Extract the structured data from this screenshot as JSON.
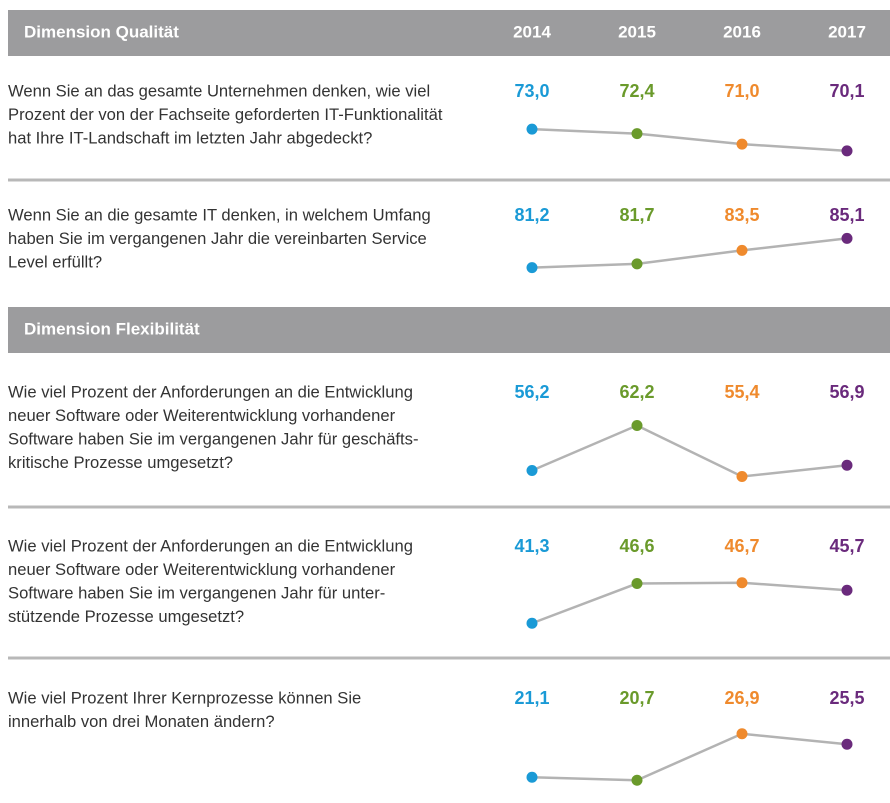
{
  "years": [
    2014,
    2015,
    2016,
    2017
  ],
  "colors": [
    "#1a9ad6",
    "#6a9a2b",
    "#ef8a2d",
    "#6a2a7c"
  ],
  "sections": [
    {
      "title": "Dimension Qualität",
      "rows": [
        {
          "lines": [
            "Wenn Sie an das gesamte Unternehmen denken, wie viel",
            "Prozent der von der Fachseite geforderten IT-Funktionalität",
            "hat Ihre IT-Landschaft im letzten Jahr abgedeckt?"
          ],
          "values": [
            73.0,
            72.4,
            71.0,
            70.1
          ],
          "value_labels": [
            "73,0",
            "72,4",
            "71,0",
            "70,1"
          ]
        },
        {
          "lines": [
            "Wenn Sie an die gesamte IT denken, in welchem Umfang",
            "haben Sie im vergangenen Jahr die vereinbarten Service",
            "Level erfüllt?"
          ],
          "values": [
            81.2,
            81.7,
            83.5,
            85.1
          ],
          "value_labels": [
            "81,2",
            "81,7",
            "83,5",
            "85,1"
          ]
        }
      ]
    },
    {
      "title": "Dimension Flexibilität",
      "rows": [
        {
          "lines": [
            "Wie viel Prozent der Anforderungen an die Entwicklung",
            "neuer Software oder Weiterentwicklung vorhandener",
            "Software haben Sie im vergangenen Jahr für geschäfts-",
            "kritische Prozesse umgesetzt?"
          ],
          "values": [
            56.2,
            62.2,
            55.4,
            56.9
          ],
          "value_labels": [
            "56,2",
            "62,2",
            "55,4",
            "56,9"
          ]
        },
        {
          "lines": [
            "Wie viel Prozent der Anforderungen an die Entwicklung",
            "neuer Software oder Weiterentwicklung vorhandener",
            "Software haben Sie im vergangenen Jahr für unter-",
            "stützende Prozesse umgesetzt?"
          ],
          "values": [
            41.3,
            46.6,
            46.7,
            45.7
          ],
          "value_labels": [
            "41,3",
            "46,6",
            "46,7",
            "45,7"
          ]
        },
        {
          "lines": [
            "Wie viel Prozent Ihrer Kernprozesse können Sie",
            "innerhalb von drei Monaten ändern?"
          ],
          "values": [
            21.1,
            20.7,
            26.9,
            25.5
          ],
          "value_labels": [
            "21,1",
            "20,7",
            "26,9",
            "25,5"
          ]
        }
      ]
    }
  ]
}
